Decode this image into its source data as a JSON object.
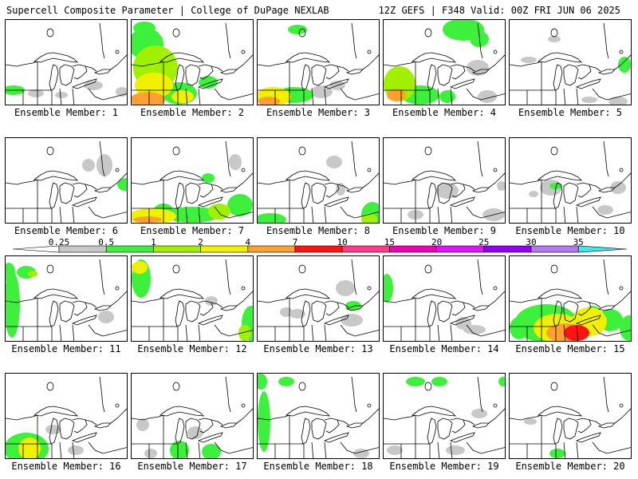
{
  "header": {
    "title": "Supercell Composite Parameter | College of DuPage NEXLAB",
    "run_info": "12Z GEFS | F348 Valid: 00Z FRI JUN 06 2025"
  },
  "colorbar": {
    "ticks": [
      "0.25",
      "0.5",
      "1",
      "2",
      "4",
      "7",
      "10",
      "15",
      "20",
      "25",
      "30",
      "35"
    ],
    "colors": [
      "#c8c8c8",
      "#3cf03c",
      "#a0f000",
      "#f0f000",
      "#ffa030",
      "#ff1414",
      "#ff3c8c",
      "#f000b4",
      "#e014ff",
      "#9600f0",
      "#b478f0",
      "#40e8e8"
    ]
  },
  "members": [
    {
      "label": "Ensemble Member: 1"
    },
    {
      "label": "Ensemble Member: 2"
    },
    {
      "label": "Ensemble Member: 3"
    },
    {
      "label": "Ensemble Member: 4"
    },
    {
      "label": "Ensemble Member: 5"
    },
    {
      "label": "Ensemble Member: 6"
    },
    {
      "label": "Ensemble Member: 7"
    },
    {
      "label": "Ensemble Member: 8"
    },
    {
      "label": "Ensemble Member: 9"
    },
    {
      "label": "Ensemble Member: 10"
    },
    {
      "label": "Ensemble Member: 11"
    },
    {
      "label": "Ensemble Member: 12"
    },
    {
      "label": "Ensemble Member: 13"
    },
    {
      "label": "Ensemble Member: 14"
    },
    {
      "label": "Ensemble Member: 15"
    },
    {
      "label": "Ensemble Member: 16"
    },
    {
      "label": "Ensemble Member: 17"
    },
    {
      "label": "Ensemble Member: 18"
    },
    {
      "label": "Ensemble Member: 19"
    },
    {
      "label": "Ensemble Member: 20"
    }
  ]
}
